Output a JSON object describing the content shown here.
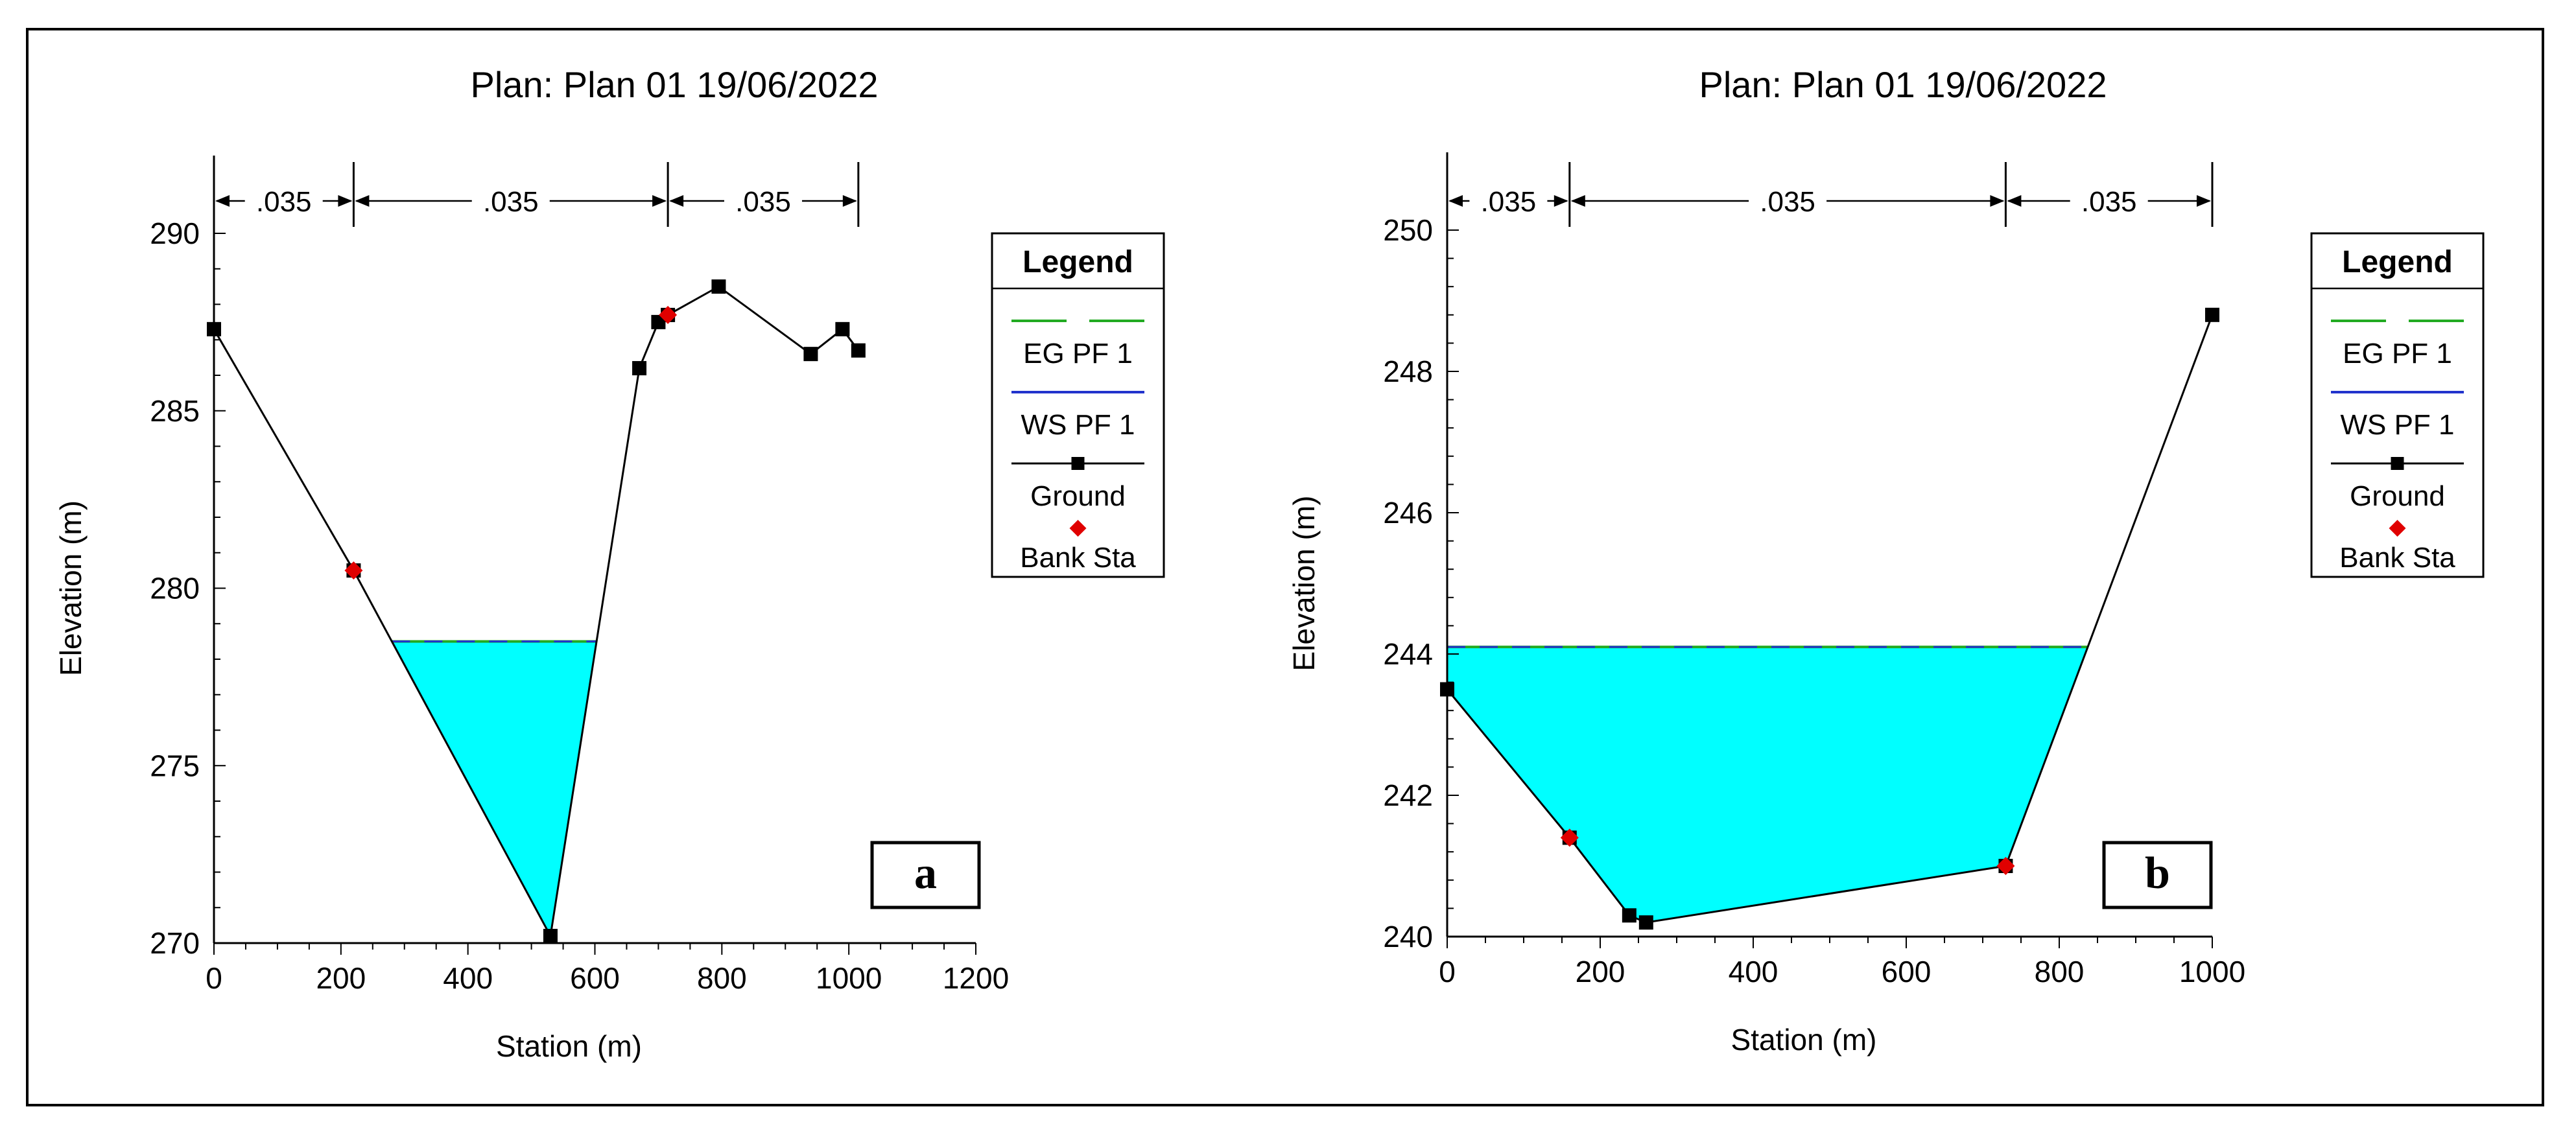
{
  "chart_data": [
    {
      "type": "line",
      "title": "Plan: Plan 01     19/06/2022",
      "xlabel": "Station (m)",
      "ylabel": "Elevation (m)",
      "xlim": [
        0,
        1200
      ],
      "ylim": [
        270,
        290
      ],
      "xticks": [
        "0",
        "200",
        "400",
        "600",
        "800",
        "1000",
        "1200"
      ],
      "yticks": [
        "270",
        "275",
        "280",
        "285",
        "290"
      ],
      "water_surface": 278.5,
      "mannings_n": [
        {
          "label": ".035",
          "from": 0,
          "to": 220
        },
        {
          "label": ".035",
          "from": 220,
          "to": 715
        },
        {
          "label": ".035",
          "from": 715,
          "to": 1015
        }
      ],
      "series": [
        {
          "name": "Ground",
          "x": [
            0,
            220,
            530,
            670,
            700,
            715,
            795,
            940,
            990,
            1015
          ],
          "y": [
            287.3,
            280.5,
            270.2,
            286.2,
            287.5,
            287.7,
            288.5,
            286.6,
            287.3,
            286.7
          ]
        },
        {
          "name": "Bank Sta",
          "x": [
            220,
            715
          ],
          "y": [
            280.5,
            287.7
          ]
        }
      ],
      "legend": [
        "EG PF 1",
        "WS PF 1",
        "Ground",
        "Bank Sta"
      ],
      "legend_title": "Legend",
      "legend_position": "right",
      "panel_label": "a",
      "colors": {
        "ground": "#000000",
        "bank": "#e00000",
        "water": "#00ffff",
        "eg": "#22aa22",
        "ws": "#2233cc"
      }
    },
    {
      "type": "line",
      "title": "Plan: Plan 01     19/06/2022",
      "xlabel": "Station (m)",
      "ylabel": "Elevation (m)",
      "xlim": [
        0,
        1000
      ],
      "ylim": [
        240,
        250
      ],
      "xticks": [
        "0",
        "200",
        "400",
        "600",
        "800",
        "1000"
      ],
      "yticks": [
        "240",
        "242",
        "244",
        "246",
        "248",
        "250"
      ],
      "water_surface": 244.1,
      "mannings_n": [
        {
          "label": ".035",
          "from": 0,
          "to": 160
        },
        {
          "label": ".035",
          "from": 160,
          "to": 730
        },
        {
          "label": ".035",
          "from": 730,
          "to": 1000
        }
      ],
      "series": [
        {
          "name": "Ground",
          "x": [
            0,
            160,
            238,
            260,
            730,
            1000
          ],
          "y": [
            243.5,
            241.4,
            240.3,
            240.2,
            241.0,
            248.8
          ]
        },
        {
          "name": "Bank Sta",
          "x": [
            160,
            730
          ],
          "y": [
            241.4,
            241.0
          ]
        }
      ],
      "legend": [
        "EG PF 1",
        "WS PF 1",
        "Ground",
        "Bank Sta"
      ],
      "legend_title": "Legend",
      "legend_position": "right",
      "panel_label": "b",
      "colors": {
        "ground": "#000000",
        "bank": "#e00000",
        "water": "#00ffff",
        "eg": "#22aa22",
        "ws": "#2233cc"
      }
    }
  ]
}
